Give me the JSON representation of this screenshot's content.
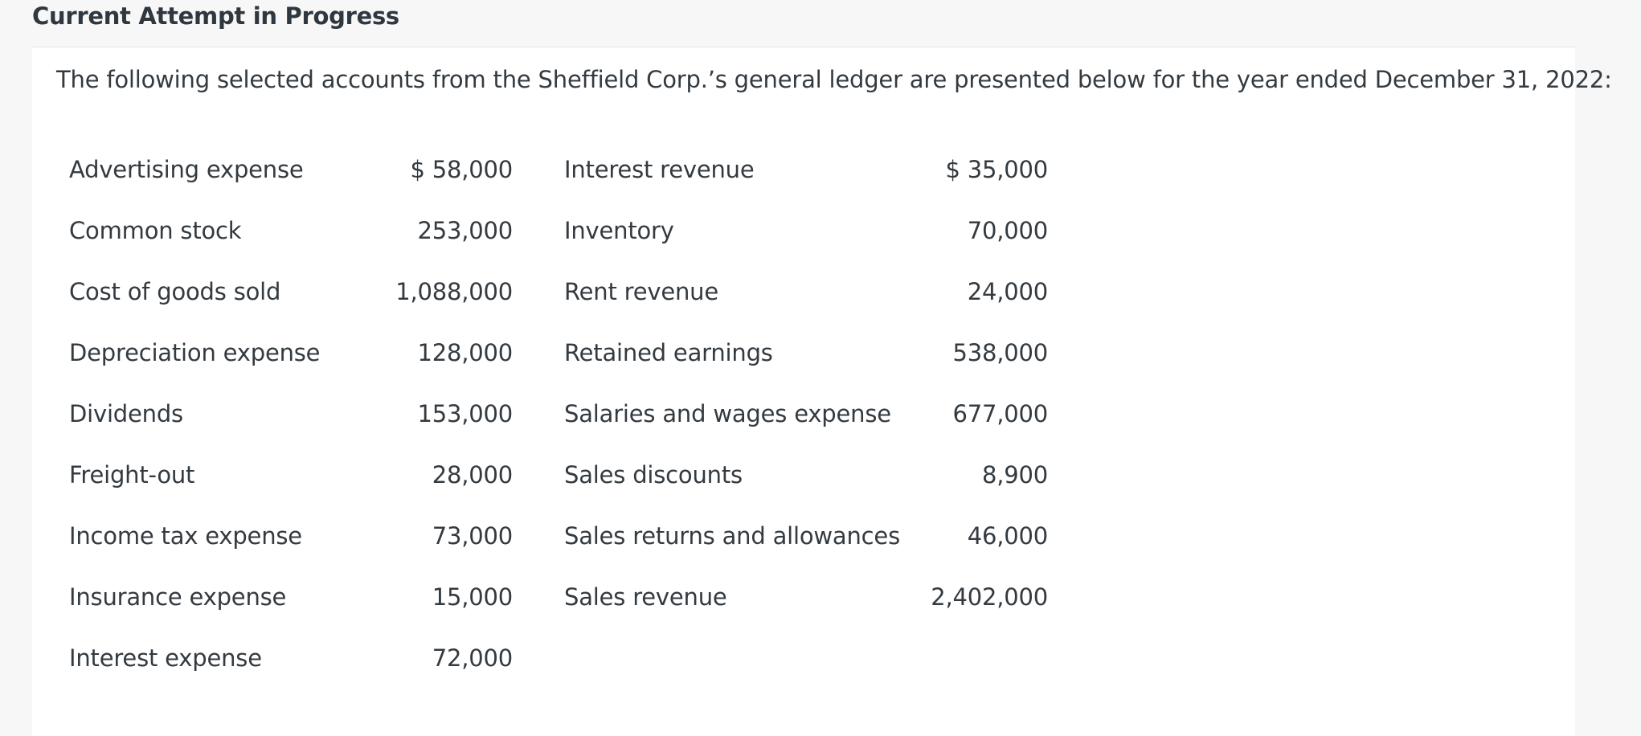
{
  "header": {
    "title": "Current Attempt in Progress"
  },
  "question": {
    "intro": "The following selected accounts from the Sheffield Corp.’s general ledger are presented below for the year ended December 31, 2022:",
    "rows": [
      {
        "left_name": "Advertising expense",
        "left_amount": "$ 58,000",
        "right_name": "Interest revenue",
        "right_amount": "$ 35,000"
      },
      {
        "left_name": "Common stock",
        "left_amount": "253,000",
        "right_name": "Inventory",
        "right_amount": "70,000"
      },
      {
        "left_name": "Cost of goods sold",
        "left_amount": "1,088,000",
        "right_name": "Rent revenue",
        "right_amount": "24,000"
      },
      {
        "left_name": "Depreciation expense",
        "left_amount": "128,000",
        "right_name": "Retained earnings",
        "right_amount": "538,000"
      },
      {
        "left_name": "Dividends",
        "left_amount": "153,000",
        "right_name": "Salaries and wages expense",
        "right_amount": "677,000"
      },
      {
        "left_name": "Freight-out",
        "left_amount": "28,000",
        "right_name": "Sales discounts",
        "right_amount": "8,900"
      },
      {
        "left_name": "Income tax expense",
        "left_amount": "73,000",
        "right_name": "Sales returns and allowances",
        "right_amount": "46,000"
      },
      {
        "left_name": "Insurance expense",
        "left_amount": "15,000",
        "right_name": "Sales revenue",
        "right_amount": "2,402,000"
      },
      {
        "left_name": "Interest expense",
        "left_amount": "72,000",
        "right_name": "",
        "right_amount": ""
      }
    ]
  }
}
